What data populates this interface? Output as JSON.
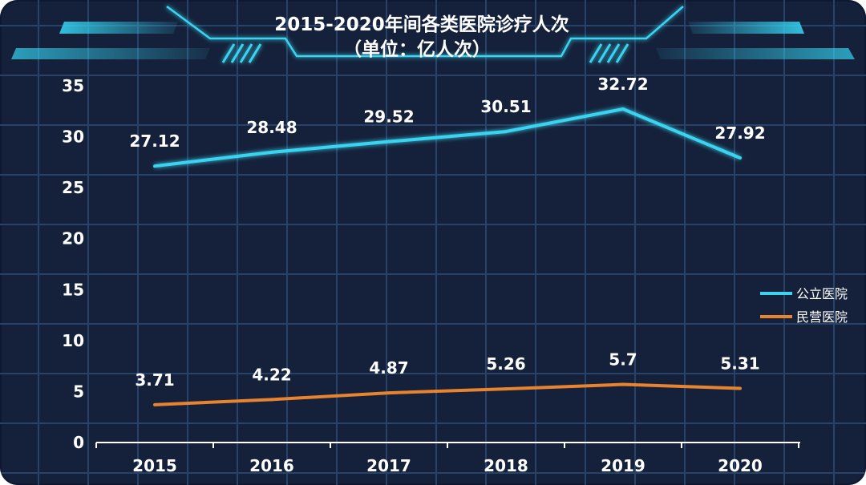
{
  "chart_data": {
    "type": "line",
    "title": "2015-2020年间各类医院诊疗人次",
    "subtitle": "（单位：亿人次）",
    "categories": [
      "2015",
      "2016",
      "2017",
      "2018",
      "2019",
      "2020"
    ],
    "ylim": [
      0,
      35
    ],
    "yticks": [
      0,
      5,
      10,
      15,
      20,
      25,
      30,
      35
    ],
    "grid": true,
    "legend_position": "right",
    "series": [
      {
        "name": "公立医院",
        "values": [
          27.12,
          28.48,
          29.52,
          30.51,
          32.72,
          27.92
        ],
        "labels": [
          "27.12",
          "28.48",
          "29.52",
          "30.51",
          "32.72",
          "27.92"
        ],
        "color": "#3ad4f0"
      },
      {
        "name": "民营医院",
        "values": [
          3.71,
          4.22,
          4.87,
          5.26,
          5.7,
          5.31
        ],
        "labels": [
          "3.71",
          "4.22",
          "4.87",
          "5.26",
          "5.7",
          "5.31"
        ],
        "color": "#e8832f"
      }
    ]
  },
  "colors": {
    "background": "#15213a",
    "grid": "#28436a",
    "accent": "#3ad4f0"
  }
}
